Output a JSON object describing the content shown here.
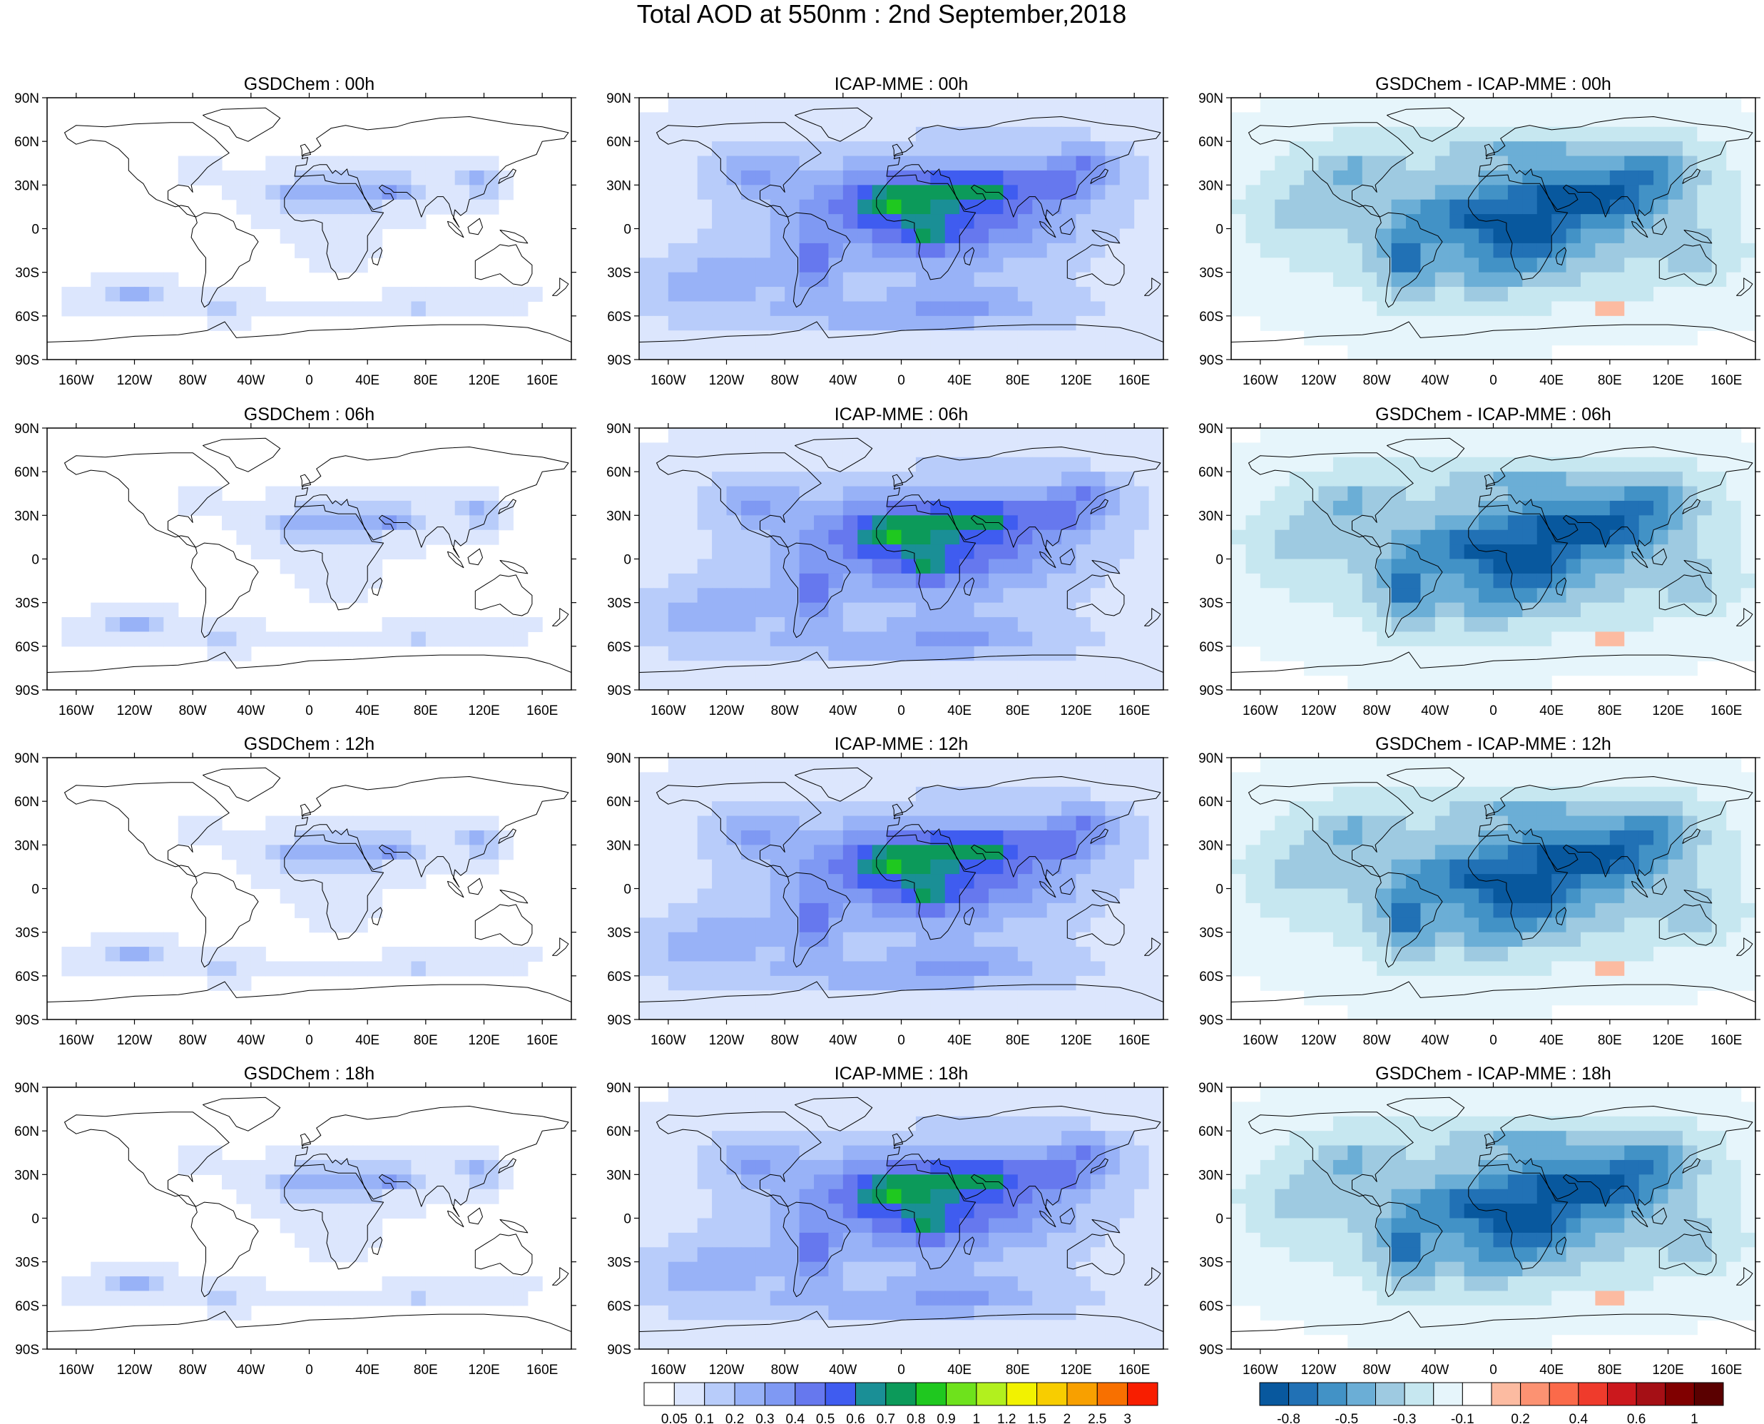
{
  "figure": {
    "title": "Total AOD at 550nm : 2nd September,2018"
  },
  "axes": {
    "lat_labels": [
      "90N",
      "60N",
      "30N",
      "0",
      "30S",
      "60S",
      "90S"
    ],
    "lon_labels": [
      "160W",
      "120W",
      "80W",
      "40W",
      "0",
      "40E",
      "80E",
      "120E",
      "160E"
    ]
  },
  "panels": [
    {
      "title": "GSDChem : 00h",
      "kind": "gsd",
      "hour": 0
    },
    {
      "title": "ICAP-MME : 00h",
      "kind": "icap",
      "hour": 0
    },
    {
      "title": "GSDChem - ICAP-MME : 00h",
      "kind": "diff",
      "hour": 0
    },
    {
      "title": "GSDChem : 06h",
      "kind": "gsd",
      "hour": 6
    },
    {
      "title": "ICAP-MME : 06h",
      "kind": "icap",
      "hour": 6
    },
    {
      "title": "GSDChem - ICAP-MME : 06h",
      "kind": "diff",
      "hour": 6
    },
    {
      "title": "GSDChem : 12h",
      "kind": "gsd",
      "hour": 12
    },
    {
      "title": "ICAP-MME : 12h",
      "kind": "icap",
      "hour": 12
    },
    {
      "title": "GSDChem - ICAP-MME : 12h",
      "kind": "diff",
      "hour": 12
    },
    {
      "title": "GSDChem : 18h",
      "kind": "gsd",
      "hour": 18
    },
    {
      "title": "ICAP-MME : 18h",
      "kind": "icap",
      "hour": 18
    },
    {
      "title": "GSDChem - ICAP-MME : 18h",
      "kind": "diff",
      "hour": 18
    }
  ],
  "colorbars": {
    "aod": {
      "labels": [
        "0.05",
        "0.1",
        "0.2",
        "0.3",
        "0.4",
        "0.5",
        "0.6",
        "0.7",
        "0.8",
        "0.9",
        "1",
        "1.2",
        "1.5",
        "2",
        "2.5",
        "3"
      ],
      "colors": [
        "#ffffff",
        "#dce6fd",
        "#b8ccfa",
        "#98b2f7",
        "#7f99f3",
        "#6678ee",
        "#3f5cf0",
        "#1a8f96",
        "#0c9a5a",
        "#1fc81f",
        "#6ee21c",
        "#b2f01e",
        "#f2f200",
        "#f8cd00",
        "#f8a000",
        "#f87000",
        "#f81e00"
      ]
    },
    "diff": {
      "labels": [
        "-0.8",
        "-0.5",
        "-0.3",
        "-0.1",
        "0.2",
        "0.4",
        "0.6",
        "1"
      ],
      "colors": [
        "#08589e",
        "#2171b5",
        "#4292c6",
        "#6baed6",
        "#9ecae1",
        "#c6e7f0",
        "#e6f5fb",
        "#ffffff",
        "#fcbba1",
        "#fc9272",
        "#fb6a4a",
        "#ef3b2c",
        "#cb181d",
        "#a50f15",
        "#800000",
        "#5a0000"
      ]
    }
  }
}
